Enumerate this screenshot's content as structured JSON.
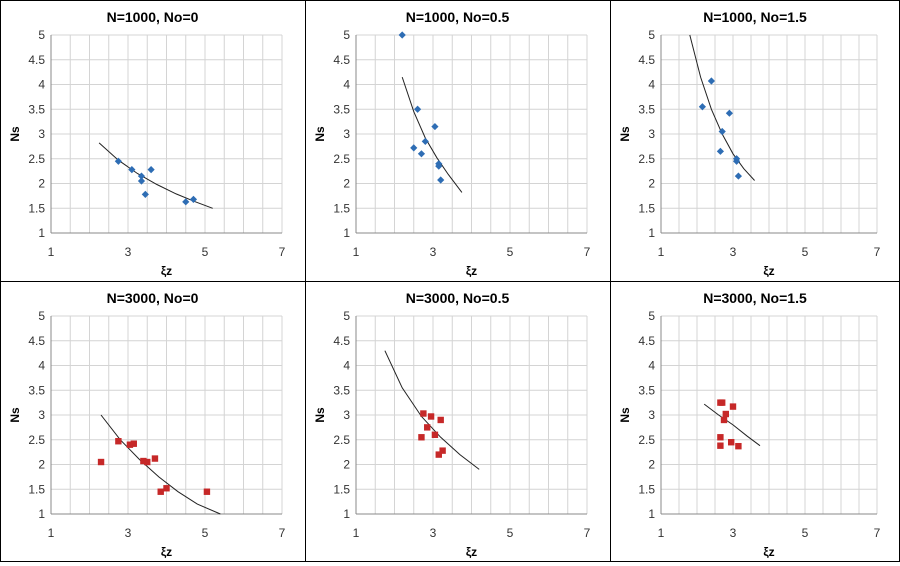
{
  "chart_data": [
    {
      "type": "scatter",
      "title": "N=1000, No=0",
      "xlabel": "ξz",
      "ylabel": "Ns",
      "xlim": [
        1,
        7
      ],
      "ylim": [
        1,
        5
      ],
      "x_ticks": [
        "1",
        "3",
        "5",
        "7"
      ],
      "y_ticks": [
        "1",
        "1.5",
        "2",
        "2.5",
        "3",
        "3.5",
        "4",
        "4.5",
        "5"
      ],
      "grid": true,
      "legend": "none",
      "marker": "diamond",
      "color": "#2e6db4",
      "points": [
        [
          2.75,
          2.45
        ],
        [
          3.1,
          2.28
        ],
        [
          3.35,
          2.15
        ],
        [
          3.35,
          2.05
        ],
        [
          3.45,
          1.78
        ],
        [
          3.6,
          2.28
        ],
        [
          4.5,
          1.63
        ],
        [
          4.7,
          1.68
        ]
      ],
      "fit_line": [
        [
          2.25,
          2.82
        ],
        [
          2.75,
          2.47
        ],
        [
          3.25,
          2.2
        ],
        [
          3.75,
          1.98
        ],
        [
          4.25,
          1.79
        ],
        [
          4.75,
          1.63
        ],
        [
          5.2,
          1.5
        ]
      ]
    },
    {
      "type": "scatter",
      "title": "N=1000, No=0.5",
      "xlabel": "ξz",
      "ylabel": "Ns",
      "xlim": [
        1,
        7
      ],
      "ylim": [
        1,
        5
      ],
      "x_ticks": [
        "1",
        "3",
        "5",
        "7"
      ],
      "y_ticks": [
        "1",
        "1.5",
        "2",
        "2.5",
        "3",
        "3.5",
        "4",
        "4.5",
        "5"
      ],
      "grid": true,
      "legend": "none",
      "marker": "diamond",
      "color": "#2e6db4",
      "points": [
        [
          2.2,
          5.0
        ],
        [
          2.5,
          2.72
        ],
        [
          2.6,
          3.5
        ],
        [
          2.7,
          2.6
        ],
        [
          2.8,
          2.85
        ],
        [
          3.05,
          3.15
        ],
        [
          3.15,
          2.4
        ],
        [
          3.15,
          2.35
        ],
        [
          3.2,
          2.07
        ]
      ],
      "fit_line": [
        [
          2.2,
          4.15
        ],
        [
          2.5,
          3.45
        ],
        [
          2.8,
          2.92
        ],
        [
          3.1,
          2.52
        ],
        [
          3.4,
          2.18
        ],
        [
          3.75,
          1.82
        ]
      ]
    },
    {
      "type": "scatter",
      "title": "N=1000, No=1.5",
      "xlabel": "ξz",
      "ylabel": "Ns",
      "xlim": [
        1,
        7
      ],
      "ylim": [
        1,
        5
      ],
      "x_ticks": [
        "1",
        "3",
        "5",
        "7"
      ],
      "y_ticks": [
        "1",
        "1.5",
        "2",
        "2.5",
        "3",
        "3.5",
        "4",
        "4.5",
        "5"
      ],
      "grid": true,
      "legend": "none",
      "marker": "diamond",
      "color": "#2e6db4",
      "points": [
        [
          2.15,
          3.55
        ],
        [
          2.4,
          4.07
        ],
        [
          2.65,
          2.65
        ],
        [
          2.7,
          3.05
        ],
        [
          2.9,
          3.42
        ],
        [
          3.1,
          2.5
        ],
        [
          3.1,
          2.45
        ],
        [
          3.15,
          2.15
        ]
      ],
      "fit_line": [
        [
          1.8,
          5.0
        ],
        [
          2.1,
          4.15
        ],
        [
          2.4,
          3.5
        ],
        [
          2.7,
          3.0
        ],
        [
          3.0,
          2.6
        ],
        [
          3.3,
          2.3
        ],
        [
          3.6,
          2.06
        ]
      ]
    },
    {
      "type": "scatter",
      "title": "N=3000, No=0",
      "xlabel": "ξz",
      "ylabel": "Ns",
      "xlim": [
        1,
        7
      ],
      "ylim": [
        1,
        5
      ],
      "x_ticks": [
        "1",
        "3",
        "5",
        "7"
      ],
      "y_ticks": [
        "1",
        "1.5",
        "2",
        "2.5",
        "3",
        "3.5",
        "4",
        "4.5",
        "5"
      ],
      "grid": true,
      "legend": "none",
      "marker": "square",
      "color": "#c62828",
      "points": [
        [
          2.3,
          2.05
        ],
        [
          2.75,
          2.47
        ],
        [
          3.05,
          2.4
        ],
        [
          3.15,
          2.42
        ],
        [
          3.4,
          2.07
        ],
        [
          3.5,
          2.05
        ],
        [
          3.7,
          2.12
        ],
        [
          3.85,
          1.45
        ],
        [
          4.0,
          1.52
        ],
        [
          5.05,
          1.45
        ]
      ],
      "fit_line": [
        [
          2.3,
          3.0
        ],
        [
          2.8,
          2.5
        ],
        [
          3.3,
          2.1
        ],
        [
          3.8,
          1.75
        ],
        [
          4.3,
          1.45
        ],
        [
          4.8,
          1.2
        ],
        [
          5.4,
          1.0
        ]
      ]
    },
    {
      "type": "scatter",
      "title": "N=3000, No=0.5",
      "xlabel": "ξz",
      "ylabel": "Ns",
      "xlim": [
        1,
        7
      ],
      "ylim": [
        1,
        5
      ],
      "x_ticks": [
        "1",
        "3",
        "5",
        "7"
      ],
      "y_ticks": [
        "1",
        "1.5",
        "2",
        "2.5",
        "3",
        "3.5",
        "4",
        "4.5",
        "5"
      ],
      "grid": true,
      "legend": "none",
      "marker": "square",
      "color": "#c62828",
      "points": [
        [
          2.7,
          2.55
        ],
        [
          2.75,
          3.03
        ],
        [
          2.85,
          2.75
        ],
        [
          2.95,
          2.97
        ],
        [
          3.05,
          2.6
        ],
        [
          3.15,
          2.2
        ],
        [
          3.2,
          2.9
        ],
        [
          3.25,
          2.28
        ]
      ],
      "fit_line": [
        [
          1.75,
          4.3
        ],
        [
          2.2,
          3.55
        ],
        [
          2.7,
          2.97
        ],
        [
          3.2,
          2.55
        ],
        [
          3.7,
          2.2
        ],
        [
          4.2,
          1.9
        ]
      ]
    },
    {
      "type": "scatter",
      "title": "N=3000, No=1.5",
      "xlabel": "ξz",
      "ylabel": "Ns",
      "xlim": [
        1,
        7
      ],
      "ylim": [
        1,
        5
      ],
      "x_ticks": [
        "1",
        "3",
        "5",
        "7"
      ],
      "y_ticks": [
        "1",
        "1.5",
        "2",
        "2.5",
        "3",
        "3.5",
        "4",
        "4.5",
        "5"
      ],
      "grid": true,
      "legend": "none",
      "marker": "square",
      "color": "#c62828",
      "points": [
        [
          2.65,
          3.25
        ],
        [
          2.7,
          3.25
        ],
        [
          2.65,
          2.55
        ],
        [
          2.65,
          2.38
        ],
        [
          2.75,
          2.9
        ],
        [
          2.8,
          3.02
        ],
        [
          2.95,
          2.45
        ],
        [
          3.0,
          3.17
        ],
        [
          3.15,
          2.37
        ]
      ],
      "fit_line": [
        [
          2.2,
          3.22
        ],
        [
          2.6,
          3.0
        ],
        [
          3.0,
          2.8
        ],
        [
          3.4,
          2.57
        ],
        [
          3.75,
          2.38
        ]
      ]
    }
  ]
}
